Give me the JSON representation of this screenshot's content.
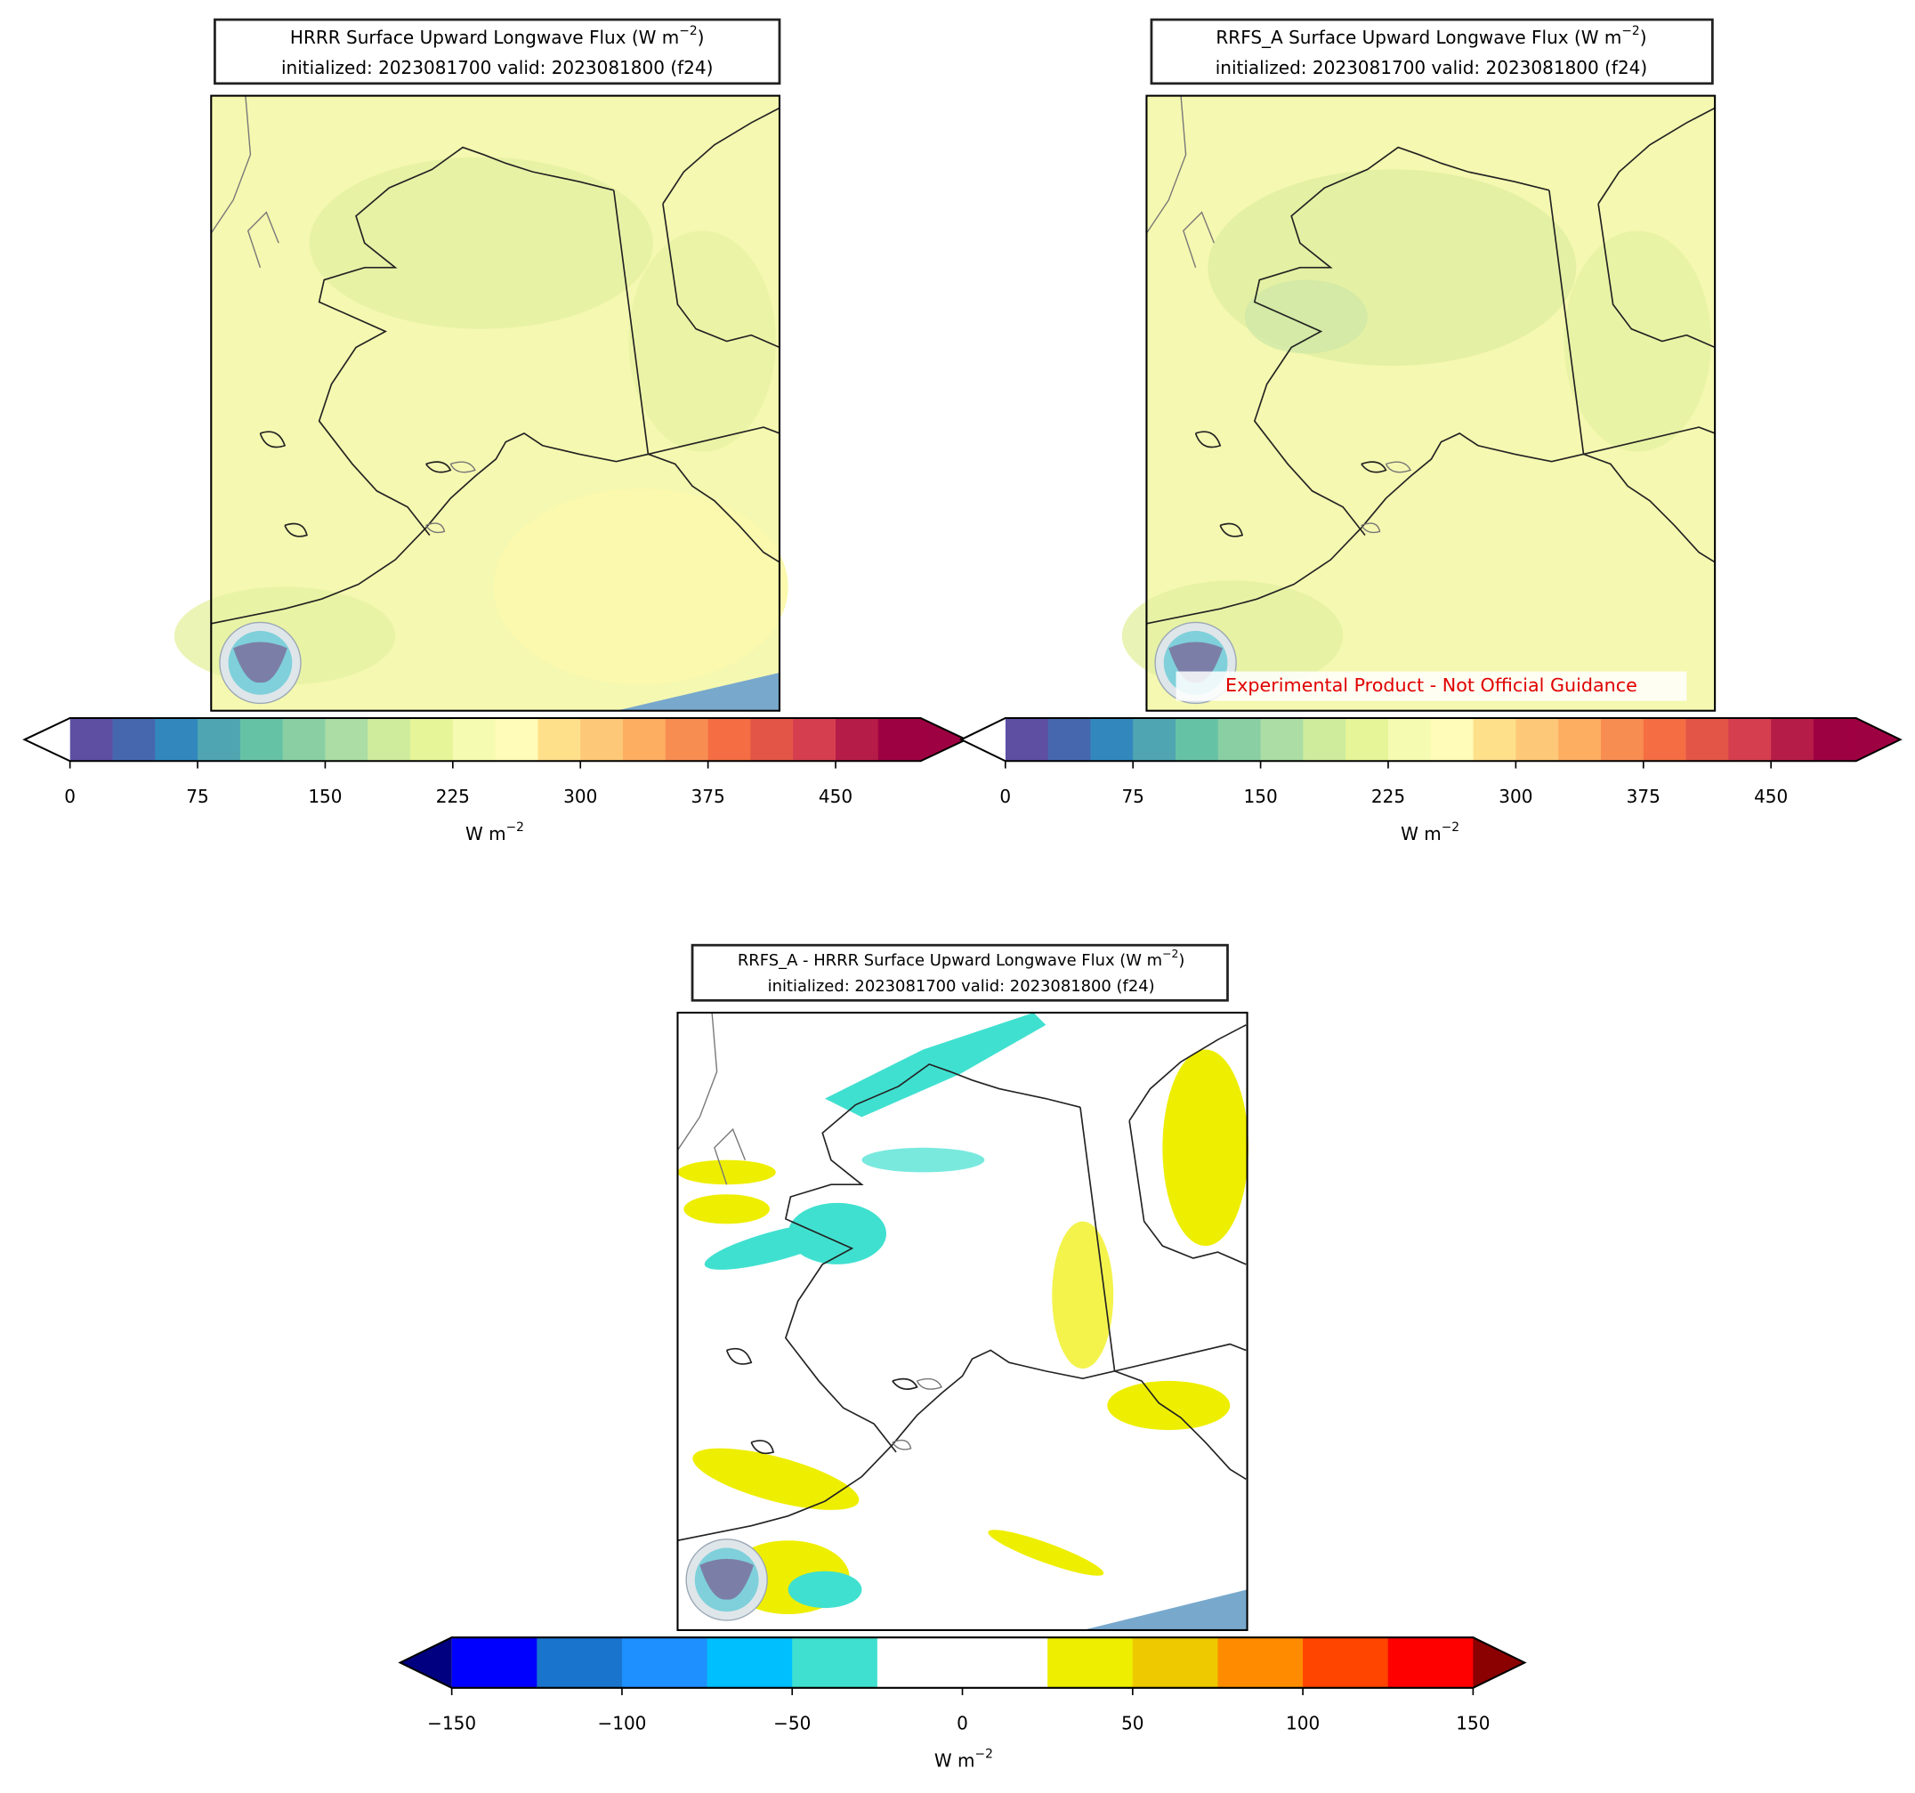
{
  "panels": [
    {
      "title": {
        "text": "HRRR Surface Upward Longwave Flux (W m",
        "superscript": "−2",
        "closing": ")"
      },
      "subtitle": "initialized: 2023081700 valid: 2023081800 (f24)",
      "colorbar": {
        "lim": [
          0,
          500
        ],
        "colors": [
          "#5e4fa2",
          "#4667ae",
          "#3288bd",
          "#4fa5b1",
          "#66c2a5",
          "#8acfa4",
          "#abdda4",
          "#cfec9d",
          "#e6f598",
          "#f5fbb1",
          "#fffbb8",
          "#fee08b",
          "#fdc877",
          "#fdae61",
          "#f88d52",
          "#f46d43",
          "#e35547",
          "#d53e4f",
          "#b61c48",
          "#9e0142"
        ],
        "extend_min_color": "#ffffff",
        "extend_max_color": "#9e0142",
        "ticks": [
          0,
          75,
          150,
          225,
          300,
          375,
          450
        ],
        "label": {
          "text": "W m",
          "superscript": "−2"
        }
      }
    },
    {
      "title": {
        "text": "RRFS_A Surface Upward Longwave Flux (W m",
        "superscript": "−2",
        "closing": ")"
      },
      "subtitle": "initialized: 2023081700 valid: 2023081800 (f24)",
      "annotation": "Experimental Product - Not Official Guidance",
      "colorbar": {
        "lim": [
          0,
          500
        ],
        "colors": [
          "#5e4fa2",
          "#4667ae",
          "#3288bd",
          "#4fa5b1",
          "#66c2a5",
          "#8acfa4",
          "#abdda4",
          "#cfec9d",
          "#e6f598",
          "#f5fbb1",
          "#fffbb8",
          "#fee08b",
          "#fdc877",
          "#fdae61",
          "#f88d52",
          "#f46d43",
          "#e35547",
          "#d53e4f",
          "#b61c48",
          "#9e0142"
        ],
        "extend_min_color": "#ffffff",
        "extend_max_color": "#9e0142",
        "ticks": [
          0,
          75,
          150,
          225,
          300,
          375,
          450
        ],
        "label": {
          "text": "W m",
          "superscript": "−2"
        }
      }
    },
    {
      "title": {
        "text": "RRFS_A - HRRR Surface Upward Longwave Flux (W m",
        "superscript": "−2",
        "closing": ")"
      },
      "subtitle": "initialized: 2023081700 valid: 2023081800 (f24)",
      "colorbar": {
        "lim": [
          -150,
          150
        ],
        "colors": [
          "#0000ff",
          "#1874cd",
          "#1e90ff",
          "#00bfff",
          "#40e0d0",
          "#ffffff",
          "#ffffff",
          "#eeee00",
          "#eec900",
          "#ff8c00",
          "#ff4500",
          "#ff0000"
        ],
        "extend_min_color": "#000080",
        "extend_max_color": "#8b0000",
        "ticks": [
          {
            "value": -150,
            "label": "−150"
          },
          {
            "value": -100,
            "label": "−100"
          },
          {
            "value": -50,
            "label": "−50"
          },
          0,
          50,
          100,
          150
        ],
        "label": {
          "text": "W m",
          "superscript": "−2"
        }
      }
    }
  ]
}
